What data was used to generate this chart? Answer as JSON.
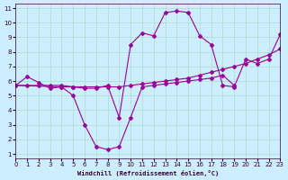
{
  "xlabel": "Windchill (Refroidissement éolien,°C)",
  "bg_color": "#cceeff",
  "line_color": "#990099",
  "grid_color": "#aaddcc",
  "xlim": [
    0,
    23
  ],
  "ylim": [
    1,
    11
  ],
  "xticks": [
    0,
    1,
    2,
    3,
    4,
    5,
    6,
    7,
    8,
    9,
    10,
    11,
    12,
    13,
    14,
    15,
    16,
    17,
    18,
    19,
    20,
    21,
    22,
    23
  ],
  "yticks": [
    1,
    2,
    3,
    4,
    5,
    6,
    7,
    8,
    9,
    10,
    11
  ],
  "line1_x": [
    0,
    1,
    2,
    3,
    4,
    5,
    6,
    7,
    8,
    9,
    10,
    11,
    12,
    13,
    14,
    15,
    16,
    17,
    18,
    19,
    20,
    21,
    22,
    23
  ],
  "line1_y": [
    5.7,
    6.3,
    5.9,
    5.5,
    5.6,
    5.6,
    5.5,
    5.5,
    5.7,
    3.5,
    8.5,
    9.3,
    9.1,
    10.7,
    10.8,
    10.7,
    9.1,
    8.5,
    5.7,
    5.6,
    7.5,
    7.2,
    7.5,
    9.2
  ],
  "line2_x": [
    0,
    1,
    2,
    3,
    4,
    5,
    6,
    7,
    8,
    9,
    10,
    11,
    12,
    13,
    14,
    15,
    16,
    17,
    18,
    19,
    20,
    21,
    22,
    23
  ],
  "line2_y": [
    5.7,
    5.7,
    5.7,
    5.7,
    5.7,
    5.6,
    5.6,
    5.6,
    5.6,
    5.6,
    5.7,
    5.8,
    5.9,
    6.0,
    6.1,
    6.2,
    6.4,
    6.6,
    6.8,
    7.0,
    7.2,
    7.5,
    7.8,
    8.2
  ],
  "line3_x": [
    0,
    4,
    5,
    6,
    7,
    8,
    9,
    10,
    11,
    12,
    13,
    14,
    15,
    16,
    17,
    18,
    19
  ],
  "line3_y": [
    5.7,
    5.6,
    5.0,
    3.0,
    1.5,
    1.3,
    1.5,
    3.5,
    5.6,
    5.7,
    5.8,
    5.9,
    6.0,
    6.1,
    6.2,
    6.4,
    5.7
  ]
}
